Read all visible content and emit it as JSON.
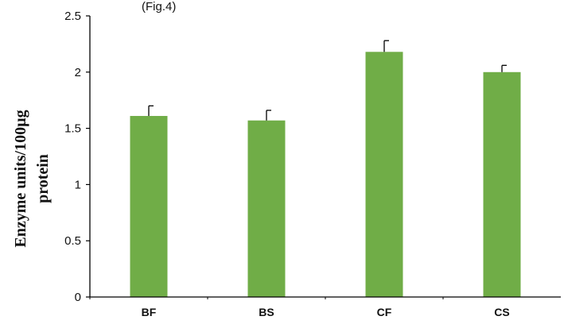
{
  "chart_data": {
    "type": "bar",
    "title_fragment": "(Fig.4)",
    "ylabel_line1": "Enzyme units/100µg",
    "ylabel_line2": "protein",
    "xlabel": "",
    "ylim": [
      0,
      2.5
    ],
    "yticks": [
      "0",
      "0.5",
      "1",
      "1.5",
      "2",
      "2.5"
    ],
    "categories": [
      "BF",
      "BS",
      "CF",
      "CS"
    ],
    "values": [
      1.61,
      1.57,
      2.18,
      2.0
    ],
    "errors": [
      0.09,
      0.09,
      0.1,
      0.06
    ],
    "bar_color": "#70ad47",
    "grid": false
  }
}
